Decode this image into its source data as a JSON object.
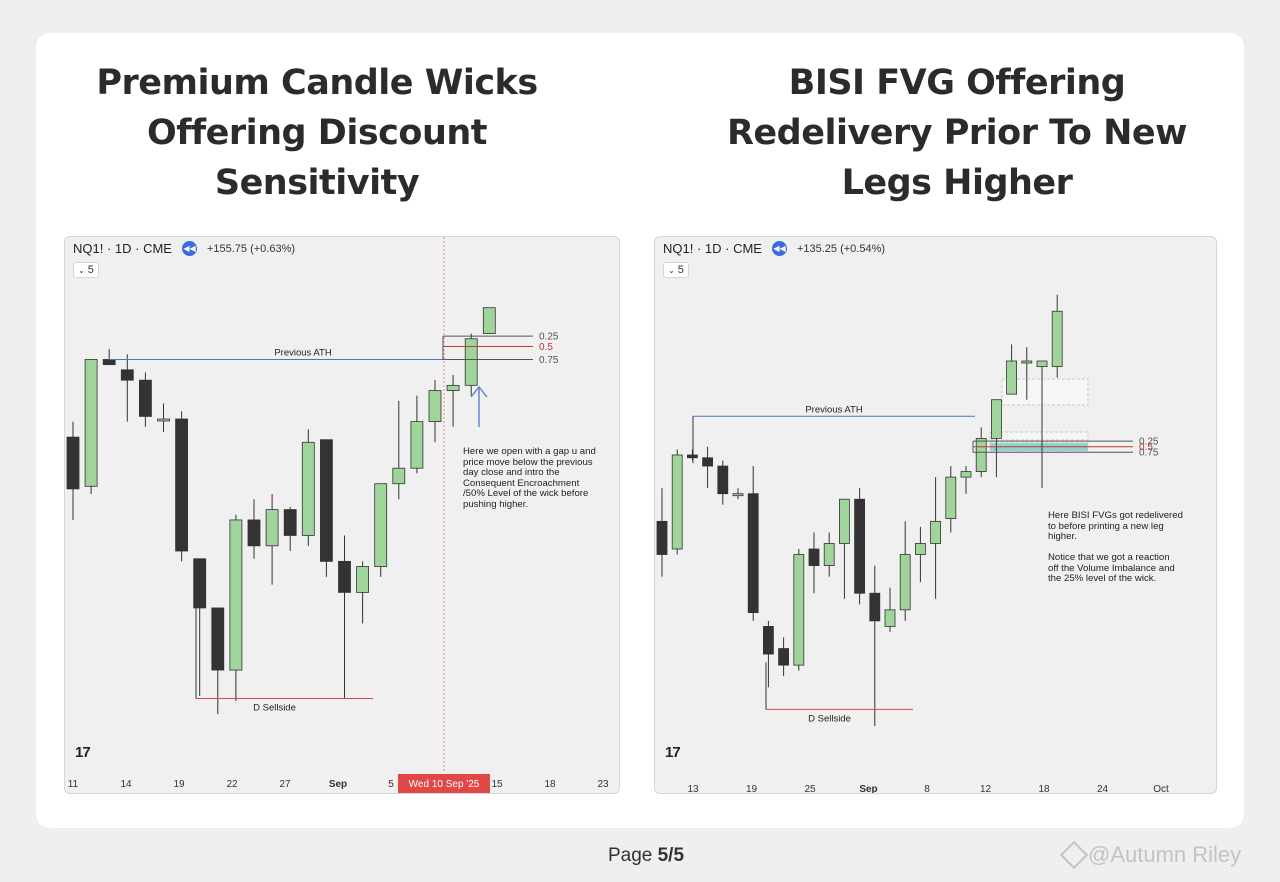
{
  "left": {
    "title": "Premium Candle Wicks Offering Discount Sensitivity",
    "header": {
      "symbol": "NQ1! · 1D · CME",
      "change": "+155.75 (+0.63%)",
      "badge": "5"
    },
    "note": "Here we open with a gap u and\nprice move below  the previous\nday close and intro the\nConsequent Encroachment\n/50% Level of the wick before\npushing higher.",
    "chart_data": {
      "type": "candlestick",
      "x_ticks": [
        "11",
        "14",
        "19",
        "22",
        "27",
        "Sep",
        "5",
        "Wed 10 Sep '25",
        "15",
        "18",
        "23"
      ],
      "highlight_tick": "Wed 10 Sep '25",
      "candles": [
        {
          "o": 23710,
          "h": 23740,
          "l": 23550,
          "c": 23610
        },
        {
          "o": 23615,
          "h": 23860,
          "l": 23600,
          "c": 23860
        },
        {
          "o": 23860,
          "h": 23880,
          "l": 23860,
          "c": 23850
        },
        {
          "o": 23840,
          "h": 23870,
          "l": 23740,
          "c": 23820
        },
        {
          "o": 23820,
          "h": 23835,
          "l": 23730,
          "c": 23750
        },
        {
          "o": 23745,
          "h": 23775,
          "l": 23720,
          "c": 23745
        },
        {
          "o": 23745,
          "h": 23760,
          "l": 23470,
          "c": 23490
        },
        {
          "o": 23475,
          "h": 23475,
          "l": 23210,
          "c": 23380
        },
        {
          "o": 23380,
          "h": 23350,
          "l": 23175,
          "c": 23260
        },
        {
          "o": 23260,
          "h": 23560,
          "l": 23200,
          "c": 23550
        },
        {
          "o": 23550,
          "h": 23590,
          "l": 23475,
          "c": 23500
        },
        {
          "o": 23500,
          "h": 23600,
          "l": 23425,
          "c": 23570
        },
        {
          "o": 23570,
          "h": 23575,
          "l": 23490,
          "c": 23520
        },
        {
          "o": 23520,
          "h": 23725,
          "l": 23500,
          "c": 23700
        },
        {
          "o": 23705,
          "h": 23705,
          "l": 23440,
          "c": 23470
        },
        {
          "o": 23470,
          "h": 23520,
          "l": 23205,
          "c": 23410
        },
        {
          "o": 23410,
          "h": 23470,
          "l": 23350,
          "c": 23460
        },
        {
          "o": 23460,
          "h": 23620,
          "l": 23440,
          "c": 23620
        },
        {
          "o": 23620,
          "h": 23780,
          "l": 23590,
          "c": 23650
        },
        {
          "o": 23650,
          "h": 23790,
          "l": 23640,
          "c": 23740
        },
        {
          "o": 23740,
          "h": 23820,
          "l": 23700,
          "c": 23800
        },
        {
          "o": 23800,
          "h": 23830,
          "l": 23730,
          "c": 23810
        },
        {
          "o": 23810,
          "h": 23910,
          "l": 23790,
          "c": 23900
        },
        {
          "o": 23910,
          "h": 23960,
          "l": 23920,
          "c": 23960
        }
      ],
      "levels": [
        {
          "label": "Previous ATH",
          "value": 23860
        },
        {
          "label": "0.25",
          "value": 23905
        },
        {
          "label": "0.5",
          "value": 23885,
          "color": "#c0392b"
        },
        {
          "label": "0.75",
          "value": 23860
        },
        {
          "label": "D Sellside",
          "value": 23205
        }
      ]
    }
  },
  "right": {
    "title": "BISI FVG Offering Redelivery Prior To New Legs Higher",
    "header": {
      "symbol": "NQ1! · 1D · CME",
      "change": "+135.25 (+0.54%)",
      "badge": "5"
    },
    "note": "Here BISI FVGs got redelivered\nto before printing a new leg\nhigher.\n\nNotice that we got a reaction\noff the Volume Imbalance and\nthe 25% level of the wick.",
    "chart_data": {
      "type": "candlestick",
      "x_ticks": [
        "13",
        "19",
        "25",
        "Sep",
        "8",
        "12",
        "18",
        "24",
        "Oct"
      ],
      "candles": [
        {
          "o": 23640,
          "h": 23700,
          "l": 23540,
          "c": 23580
        },
        {
          "o": 23590,
          "h": 23770,
          "l": 23580,
          "c": 23760
        },
        {
          "o": 23760,
          "h": 23770,
          "l": 23750,
          "c": 23755
        },
        {
          "o": 23755,
          "h": 23775,
          "l": 23700,
          "c": 23740
        },
        {
          "o": 23740,
          "h": 23750,
          "l": 23670,
          "c": 23690
        },
        {
          "o": 23690,
          "h": 23700,
          "l": 23680,
          "c": 23690
        },
        {
          "o": 23690,
          "h": 23740,
          "l": 23460,
          "c": 23475
        },
        {
          "o": 23450,
          "h": 23460,
          "l": 23340,
          "c": 23400
        },
        {
          "o": 23410,
          "h": 23430,
          "l": 23360,
          "c": 23380
        },
        {
          "o": 23380,
          "h": 23590,
          "l": 23370,
          "c": 23580
        },
        {
          "o": 23590,
          "h": 23620,
          "l": 23510,
          "c": 23560
        },
        {
          "o": 23560,
          "h": 23620,
          "l": 23540,
          "c": 23600
        },
        {
          "o": 23600,
          "h": 23660,
          "l": 23500,
          "c": 23680
        },
        {
          "o": 23680,
          "h": 23700,
          "l": 23490,
          "c": 23510
        },
        {
          "o": 23510,
          "h": 23560,
          "l": 23270,
          "c": 23460
        },
        {
          "o": 23450,
          "h": 23520,
          "l": 23440,
          "c": 23480
        },
        {
          "o": 23480,
          "h": 23640,
          "l": 23460,
          "c": 23580
        },
        {
          "o": 23580,
          "h": 23630,
          "l": 23530,
          "c": 23600
        },
        {
          "o": 23600,
          "h": 23720,
          "l": 23500,
          "c": 23640
        },
        {
          "o": 23645,
          "h": 23740,
          "l": 23620,
          "c": 23720
        },
        {
          "o": 23720,
          "h": 23740,
          "l": 23690,
          "c": 23730
        },
        {
          "o": 23730,
          "h": 23810,
          "l": 23720,
          "c": 23790
        },
        {
          "o": 23790,
          "h": 23830,
          "l": 23720,
          "c": 23860
        },
        {
          "o": 23870,
          "h": 23960,
          "l": 23880,
          "c": 23930
        },
        {
          "o": 23930,
          "h": 23955,
          "l": 23860,
          "c": 23930
        },
        {
          "o": 23920,
          "h": 23930,
          "l": 23700,
          "c": 23930
        },
        {
          "o": 23920,
          "h": 24050,
          "l": 23900,
          "c": 24020
        }
      ],
      "levels": [
        {
          "label": "Previous ATH",
          "value": 23830
        },
        {
          "label": "0.25",
          "value": 23785
        },
        {
          "label": "0.5",
          "value": 23775,
          "color": "#c0392b"
        },
        {
          "label": "0.75",
          "value": 23765
        },
        {
          "label": "D Sellside",
          "value": 23300
        }
      ]
    }
  },
  "footer": {
    "page_label": "Page ",
    "page_num": "5/5",
    "watermark": "@Autumn Riley"
  },
  "colors": {
    "bull": "#9fd49a",
    "bear": "#333333",
    "ath_line": "#4a74c9",
    "sellside_line": "#d14b4b",
    "highlight": "#e04848",
    "fvg": "#8fd3cd"
  }
}
